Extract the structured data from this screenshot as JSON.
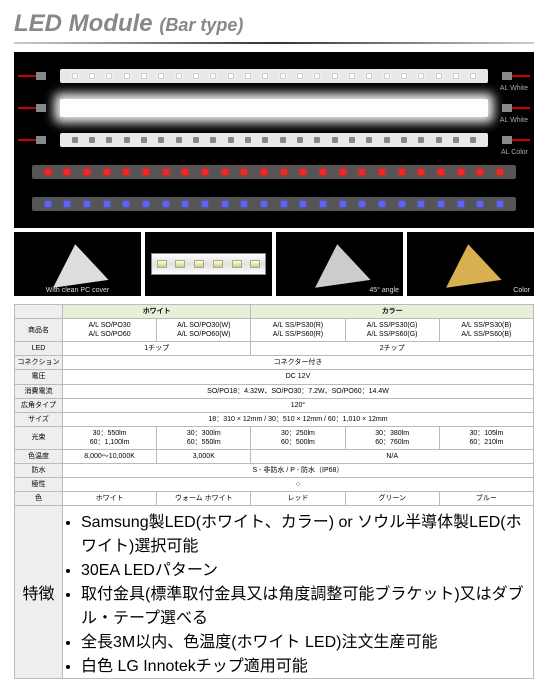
{
  "title_main": "LED Module",
  "title_sub": "(Bar type)",
  "bar_labels": {
    "al_white": "AL White",
    "al_color": "AL Color"
  },
  "detail_labels": {
    "cover": "With clean PC cover",
    "angle": "45° angle",
    "color": "Color"
  },
  "led_counts": {
    "per_bar": 24
  },
  "table": {
    "group_white": "ホワイト",
    "group_color": "カラー",
    "rows": {
      "name": "商品名",
      "led": "LED",
      "connection": "コネクション",
      "voltage": "電圧",
      "power": "消費電流",
      "angle": "広角タイプ",
      "size": "サイズ",
      "lumen": "光束",
      "colortemp": "色温度",
      "waterproof": "防水",
      "polarity": "極性",
      "color": "色",
      "features": "特徴"
    },
    "products": [
      "A/L SO/PO30\nA/L SO/PO60",
      "A/L SO/PO30(W)\nA/L SO/PO60(W)",
      "A/L SS/PS30(R)\nA/L SS/PS60(R)",
      "A/L SS/PS30(G)\nA/L SS/PS60(G)",
      "A/L SS/PS30(B)\nA/L SS/PS60(B)"
    ],
    "led_vals": [
      "1チップ",
      "2チップ"
    ],
    "connection": "コネクター付き",
    "voltage_val": "DC 12V",
    "power_val": "SO/PO18：4.32W、SO/PO30：7.2W、SO/PO60：14.4W",
    "angle_val": "120°",
    "size_val": "18：310 × 12mm / 30：510 × 12mm / 60：1,010 × 12mm",
    "lumens": [
      "30：550lm\n60：1,100lm",
      "30：300lm\n60：550lm",
      "30：250lm\n60：500lm",
      "30：380lm\n60：760lm",
      "30：105lm\n60：210lm"
    ],
    "colortemps": [
      "8,000～10,000K",
      "3,000K",
      "N/A"
    ],
    "waterproof_val": "S - 非防水 / P - 防水（IP68）",
    "polarity_val": "○",
    "colors": [
      "ホワイト",
      "ウォーム ホワイト",
      "レッド",
      "グリーン",
      "ブルー"
    ],
    "features_list": [
      "Samsung製LED(ホワイト、カラー) or ソウル半導体製LED(ホワイト)選択可能",
      "30EA LEDパターン",
      "取付金具(標準取付金具又は角度調整可能ブラケット)又はダブル・テープ選べる",
      "全長3M以内、色温度(ホワイト LED)注文生産可能",
      "白色 LG Innotekチップ適用可能"
    ]
  },
  "colors_hex": {
    "title": "#888888",
    "group_bg": "#e6f0d8",
    "rowhdr_bg": "#eeeeee",
    "border": "#bbbbbb"
  }
}
